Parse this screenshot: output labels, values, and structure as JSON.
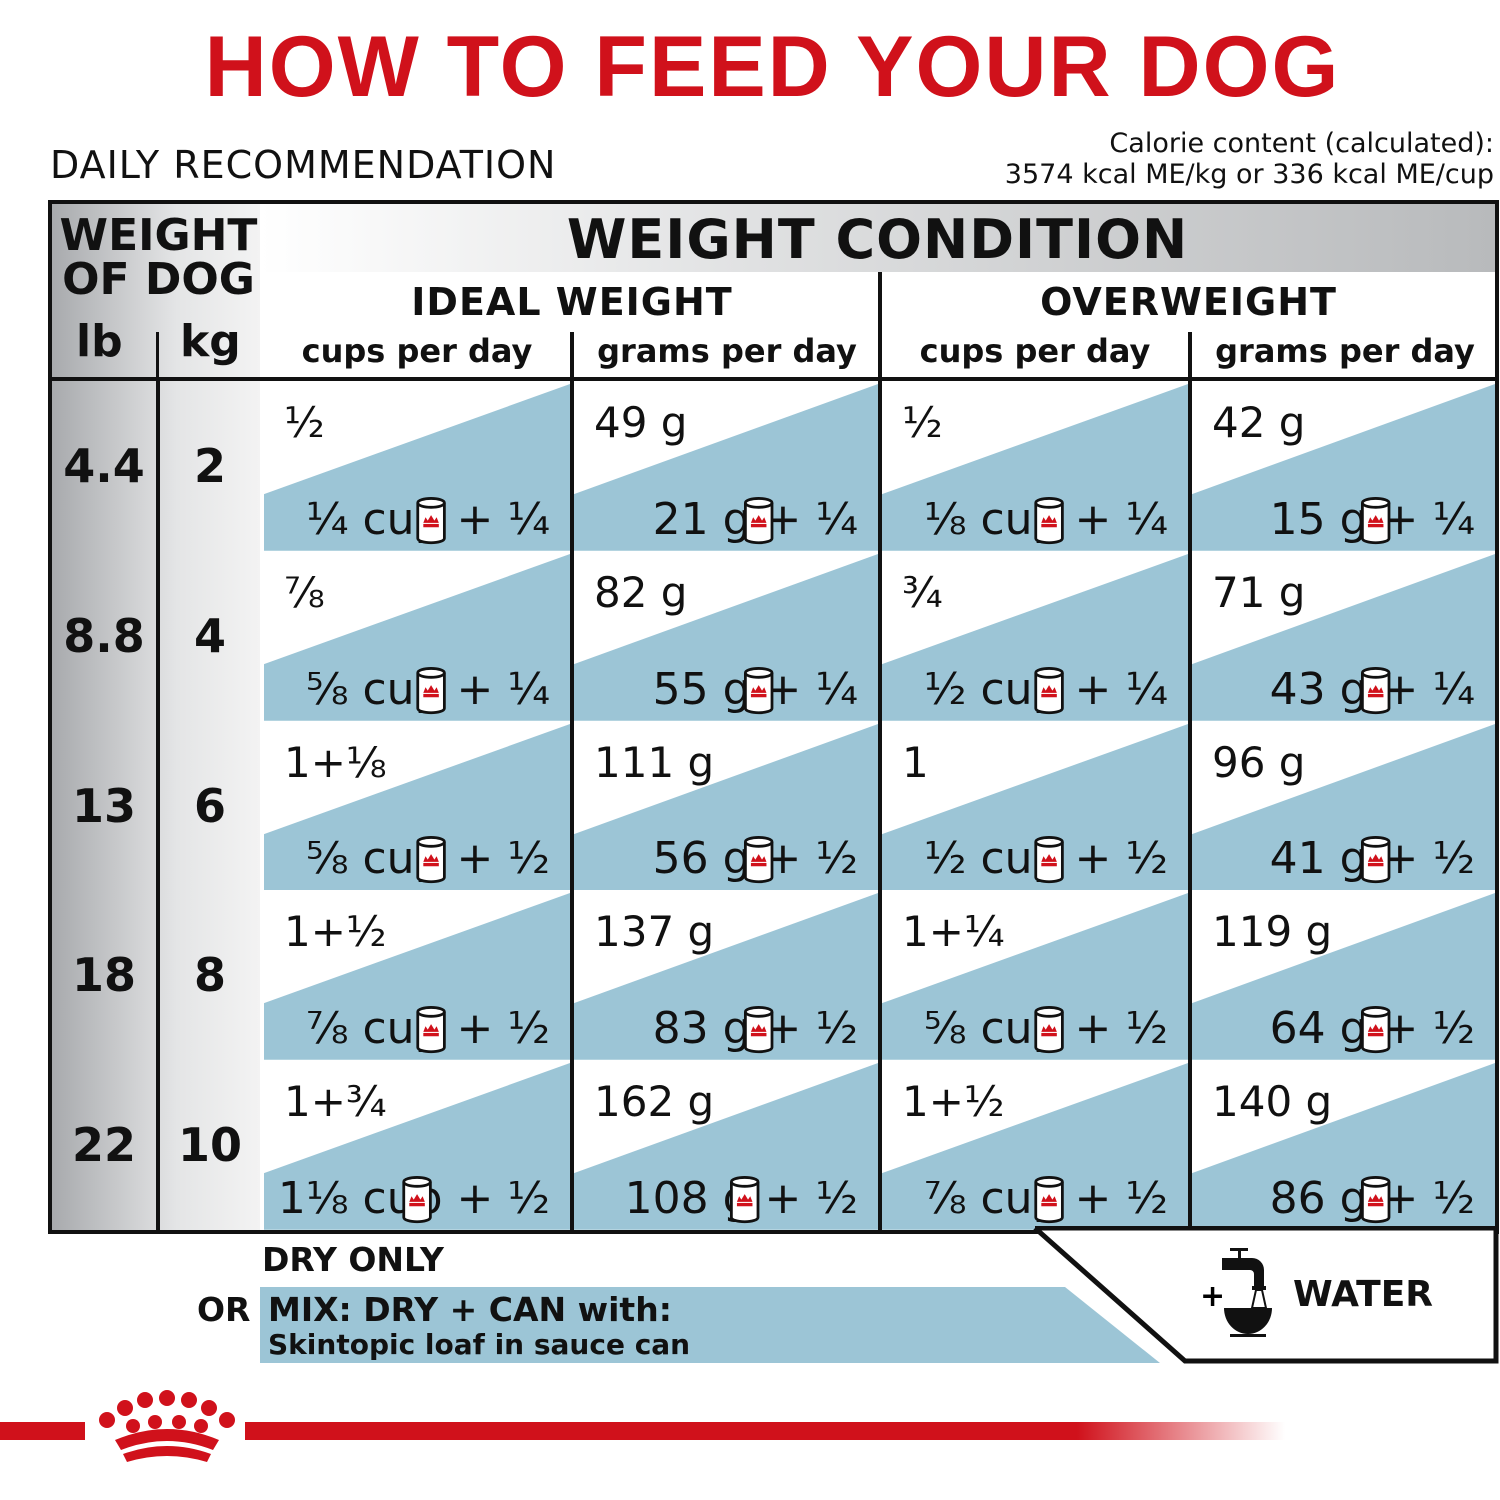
{
  "title": "HOW TO FEED YOUR DOG",
  "subtitle": "DAILY RECOMMENDATION",
  "calorie": {
    "line1": "Calorie content (calculated):",
    "line2": "3574 kcal ME/kg or 336 kcal ME/cup"
  },
  "header": {
    "weight_of_dog": "WEIGHT OF DOG",
    "lb": "lb",
    "kg": "kg",
    "weight_condition": "WEIGHT CONDITION",
    "groups": [
      "IDEAL WEIGHT",
      "OVERWEIGHT"
    ],
    "subcols": [
      "cups per day",
      "grams per day",
      "cups per day",
      "grams per day"
    ]
  },
  "rows": [
    {
      "lb": "4.4",
      "kg": "2",
      "cells": [
        {
          "dry": "½",
          "mix": "¼ cup + ¼"
        },
        {
          "dry": "49 g",
          "mix": "21 g + ¼"
        },
        {
          "dry": "½",
          "mix": "⅛ cup + ¼"
        },
        {
          "dry": "42 g",
          "mix": "15 g + ¼"
        }
      ]
    },
    {
      "lb": "8.8",
      "kg": "4",
      "cells": [
        {
          "dry": "⅞",
          "mix": "⅝ cup + ¼"
        },
        {
          "dry": "82 g",
          "mix": "55 g + ¼"
        },
        {
          "dry": "¾",
          "mix": "½ cup + ¼"
        },
        {
          "dry": "71 g",
          "mix": "43 g + ¼"
        }
      ]
    },
    {
      "lb": "13",
      "kg": "6",
      "cells": [
        {
          "dry": "1+⅛",
          "mix": "⅝ cup + ½"
        },
        {
          "dry": "111 g",
          "mix": "56 g + ½"
        },
        {
          "dry": "1",
          "mix": "½ cup + ½"
        },
        {
          "dry": "96 g",
          "mix": "41 g + ½"
        }
      ]
    },
    {
      "lb": "18",
      "kg": "8",
      "cells": [
        {
          "dry": "1+½",
          "mix": "⅞ cup + ½"
        },
        {
          "dry": "137 g",
          "mix": "83 g + ½"
        },
        {
          "dry": "1+¼",
          "mix": "⅝ cup + ½"
        },
        {
          "dry": "119 g",
          "mix": "64 g + ½"
        }
      ]
    },
    {
      "lb": "22",
      "kg": "10",
      "cells": [
        {
          "dry": "1+¾",
          "mix": "1⅛ cup + ½"
        },
        {
          "dry": "162 g",
          "mix": "108 g + ½"
        },
        {
          "dry": "1+½",
          "mix": "⅞ cup + ½"
        },
        {
          "dry": "140 g",
          "mix": "86 g + ½"
        }
      ]
    }
  ],
  "legend": {
    "dry_only": "DRY ONLY",
    "or": "OR",
    "mix_line1": "MIX: DRY + CAN with:",
    "mix_line2": "Skintopic loaf in sauce can",
    "plus": "+",
    "water": "WATER"
  },
  "icons": {
    "can": "wet-food-can-icon",
    "water": "faucet-bowl-icon",
    "logo": "royal-crown-logo"
  },
  "colors": {
    "brand_red": "#d0111b",
    "mix_blue": "#9cc5d6"
  }
}
